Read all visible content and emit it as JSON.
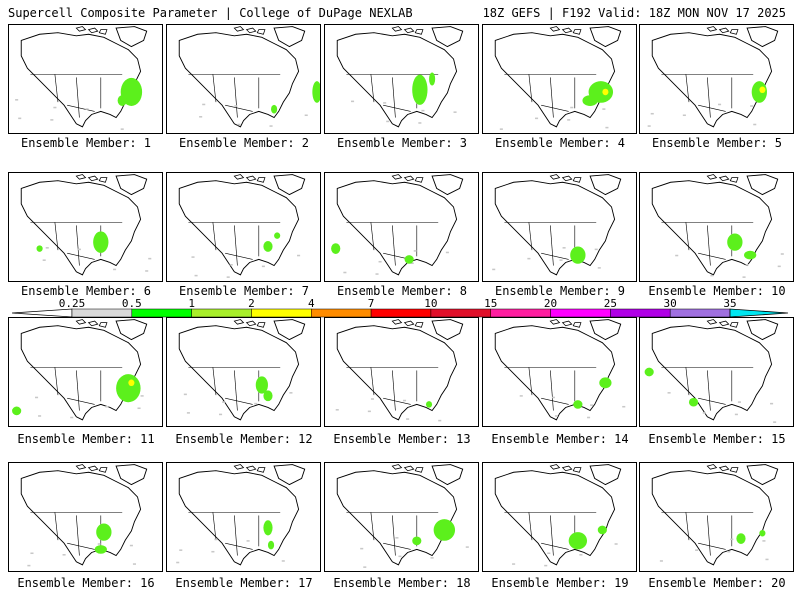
{
  "header": {
    "left_title": "Supercell Composite Parameter | College of DuPage NEXLAB",
    "right_title": "18Z GEFS | F192 Valid: 18Z MON NOV 17 2025"
  },
  "members": [
    {
      "label": "Ensemble Member: 1",
      "blobs": [
        [
          0.8,
          0.62,
          0.07,
          0.13,
          "#5cf01c"
        ],
        [
          0.74,
          0.7,
          0.03,
          0.05,
          "#5cf01c"
        ]
      ]
    },
    {
      "label": "Ensemble Member: 2",
      "blobs": [
        [
          0.98,
          0.62,
          0.03,
          0.1,
          "#5cf01c"
        ],
        [
          0.7,
          0.78,
          0.02,
          0.04,
          "#5cf01c"
        ]
      ]
    },
    {
      "label": "Ensemble Member: 3",
      "blobs": [
        [
          0.62,
          0.6,
          0.05,
          0.14,
          "#5cf01c"
        ],
        [
          0.7,
          0.5,
          0.02,
          0.06,
          "#5cf01c"
        ]
      ]
    },
    {
      "label": "Ensemble Member: 4",
      "blobs": [
        [
          0.77,
          0.62,
          0.08,
          0.1,
          "#5cf01c"
        ],
        [
          0.7,
          0.7,
          0.05,
          0.05,
          "#5cf01c"
        ],
        [
          0.8,
          0.62,
          0.02,
          0.03,
          "#ffff00"
        ]
      ]
    },
    {
      "label": "Ensemble Member: 5",
      "blobs": [
        [
          0.78,
          0.62,
          0.05,
          0.1,
          "#5cf01c"
        ],
        [
          0.8,
          0.6,
          0.02,
          0.03,
          "#ffff00"
        ]
      ]
    },
    {
      "label": "Ensemble Member: 6",
      "blobs": [
        [
          0.6,
          0.64,
          0.05,
          0.1,
          "#5cf01c"
        ],
        [
          0.2,
          0.7,
          0.02,
          0.03,
          "#5cf01c"
        ]
      ]
    },
    {
      "label": "Ensemble Member: 7",
      "blobs": [
        [
          0.66,
          0.68,
          0.03,
          0.05,
          "#5cf01c"
        ],
        [
          0.72,
          0.58,
          0.02,
          0.03,
          "#5cf01c"
        ]
      ]
    },
    {
      "label": "Ensemble Member: 8",
      "blobs": [
        [
          0.07,
          0.7,
          0.03,
          0.05,
          "#5cf01c"
        ],
        [
          0.55,
          0.8,
          0.03,
          0.04,
          "#5cf01c"
        ]
      ]
    },
    {
      "label": "Ensemble Member: 9",
      "blobs": [
        [
          0.62,
          0.76,
          0.05,
          0.08,
          "#5cf01c"
        ]
      ]
    },
    {
      "label": "Ensemble Member: 10",
      "blobs": [
        [
          0.62,
          0.64,
          0.05,
          0.08,
          "#5cf01c"
        ],
        [
          0.72,
          0.76,
          0.04,
          0.04,
          "#5cf01c"
        ]
      ]
    },
    {
      "label": "Ensemble Member: 11",
      "blobs": [
        [
          0.78,
          0.65,
          0.08,
          0.13,
          "#5cf01c"
        ],
        [
          0.8,
          0.6,
          0.02,
          0.03,
          "#ffff00"
        ],
        [
          0.05,
          0.86,
          0.03,
          0.04,
          "#5cf01c"
        ]
      ]
    },
    {
      "label": "Ensemble Member: 12",
      "blobs": [
        [
          0.62,
          0.62,
          0.04,
          0.08,
          "#5cf01c"
        ],
        [
          0.66,
          0.72,
          0.03,
          0.05,
          "#5cf01c"
        ]
      ]
    },
    {
      "label": "Ensemble Member: 13",
      "blobs": [
        [
          0.68,
          0.8,
          0.02,
          0.03,
          "#5cf01c"
        ]
      ]
    },
    {
      "label": "Ensemble Member: 14",
      "blobs": [
        [
          0.62,
          0.8,
          0.03,
          0.04,
          "#5cf01c"
        ],
        [
          0.8,
          0.6,
          0.04,
          0.05,
          "#5cf01c"
        ]
      ]
    },
    {
      "label": "Ensemble Member: 15",
      "blobs": [
        [
          0.06,
          0.5,
          0.03,
          0.04,
          "#5cf01c"
        ],
        [
          0.35,
          0.78,
          0.03,
          0.04,
          "#5cf01c"
        ]
      ]
    },
    {
      "label": "Ensemble Member: 16",
      "blobs": [
        [
          0.62,
          0.64,
          0.05,
          0.08,
          "#5cf01c"
        ],
        [
          0.6,
          0.8,
          0.04,
          0.04,
          "#5cf01c"
        ]
      ]
    },
    {
      "label": "Ensemble Member: 17",
      "blobs": [
        [
          0.66,
          0.6,
          0.03,
          0.07,
          "#5cf01c"
        ],
        [
          0.68,
          0.76,
          0.02,
          0.04,
          "#5cf01c"
        ]
      ]
    },
    {
      "label": "Ensemble Member: 18",
      "blobs": [
        [
          0.78,
          0.62,
          0.07,
          0.1,
          "#5cf01c"
        ],
        [
          0.6,
          0.72,
          0.03,
          0.04,
          "#5cf01c"
        ]
      ]
    },
    {
      "label": "Ensemble Member: 19",
      "blobs": [
        [
          0.62,
          0.72,
          0.06,
          0.08,
          "#5cf01c"
        ],
        [
          0.78,
          0.62,
          0.03,
          0.04,
          "#5cf01c"
        ]
      ]
    },
    {
      "label": "Ensemble Member: 20",
      "blobs": [
        [
          0.66,
          0.7,
          0.03,
          0.05,
          "#5cf01c"
        ],
        [
          0.8,
          0.65,
          0.02,
          0.03,
          "#5cf01c"
        ]
      ]
    }
  ],
  "colorbar": {
    "labels": [
      "0.25",
      "0.5",
      "1",
      "2",
      "4",
      "7",
      "10",
      "15",
      "20",
      "25",
      "30",
      "35"
    ],
    "colors": [
      "#d9d9d9",
      "#00ff00",
      "#a8ef2a",
      "#ffff00",
      "#ff8c00",
      "#ff0000",
      "#e0102a",
      "#ff1ea0",
      "#ff00ff",
      "#b000e6",
      "#a070e0",
      "#00e6f0"
    ]
  }
}
